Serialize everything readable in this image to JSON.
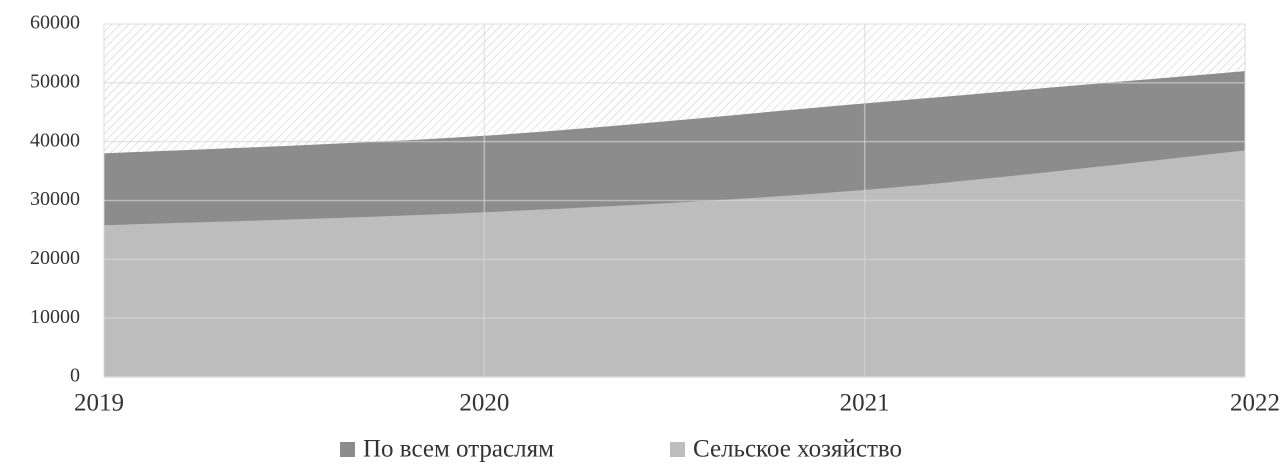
{
  "chart_data": {
    "type": "area",
    "x": [
      2019,
      2020,
      2021,
      2022
    ],
    "xlim": [
      2019,
      2022
    ],
    "xticks": [
      2019,
      2020,
      2021,
      2022
    ],
    "ylim": [
      0,
      60000
    ],
    "yticks": [
      0,
      10000,
      20000,
      30000,
      40000,
      50000,
      60000
    ],
    "grid": true,
    "legend": "bottom",
    "series": [
      {
        "name": "По всем отраслям",
        "color": "#8c8c8c",
        "values": [
          38000,
          41000,
          46500,
          52000
        ]
      },
      {
        "name": "Сельское хозяйство",
        "color": "#bdbdbd",
        "values": [
          25800,
          28000,
          31800,
          38500
        ]
      }
    ]
  }
}
